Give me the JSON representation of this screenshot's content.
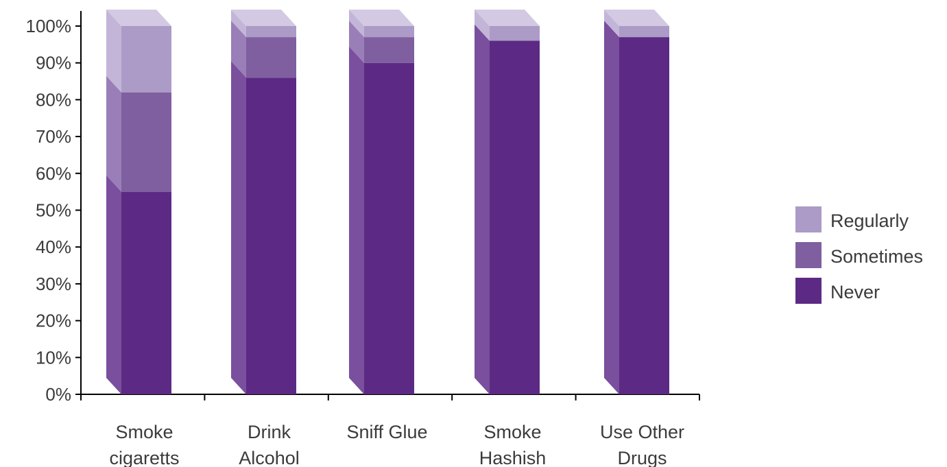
{
  "chart_data": {
    "type": "bar",
    "stacked": true,
    "three_d": true,
    "orientation": "vertical",
    "percent_stacked": true,
    "categories": [
      [
        "Smoke",
        "cigaretts"
      ],
      [
        "Drink",
        "Alcohol"
      ],
      [
        "Sniff Glue"
      ],
      [
        "Smoke",
        "Hashish"
      ],
      [
        "Use Other",
        "Drugs"
      ]
    ],
    "series": [
      {
        "name": "Never",
        "values": [
          55,
          86,
          90,
          96,
          97
        ]
      },
      {
        "name": "Sometimes",
        "values": [
          27,
          11,
          7,
          0,
          0
        ]
      },
      {
        "name": "Regularly",
        "values": [
          18,
          3,
          3,
          4,
          3
        ]
      }
    ],
    "ylim": [
      0,
      100
    ],
    "y_ticks": [
      "0%",
      "10%",
      "20%",
      "30%",
      "40%",
      "50%",
      "60%",
      "70%",
      "80%",
      "90%",
      "100%"
    ],
    "legend_position": "right",
    "legend_order": [
      "Regularly",
      "Sometimes",
      "Never"
    ],
    "grid": false,
    "colors": {
      "Never": {
        "front": "#5c2a84",
        "side": "#7a4f9e",
        "top": "#7a4f9e"
      },
      "Sometimes": {
        "front": "#7f5f9f",
        "side": "#9a7eb8",
        "top": "#9a7eb8"
      },
      "Regularly": {
        "front": "#ab9bc6",
        "side": "#c3b5d8",
        "top": "#d3c9e3"
      },
      "axis": "#000000",
      "text": "#3b3b3b"
    }
  }
}
